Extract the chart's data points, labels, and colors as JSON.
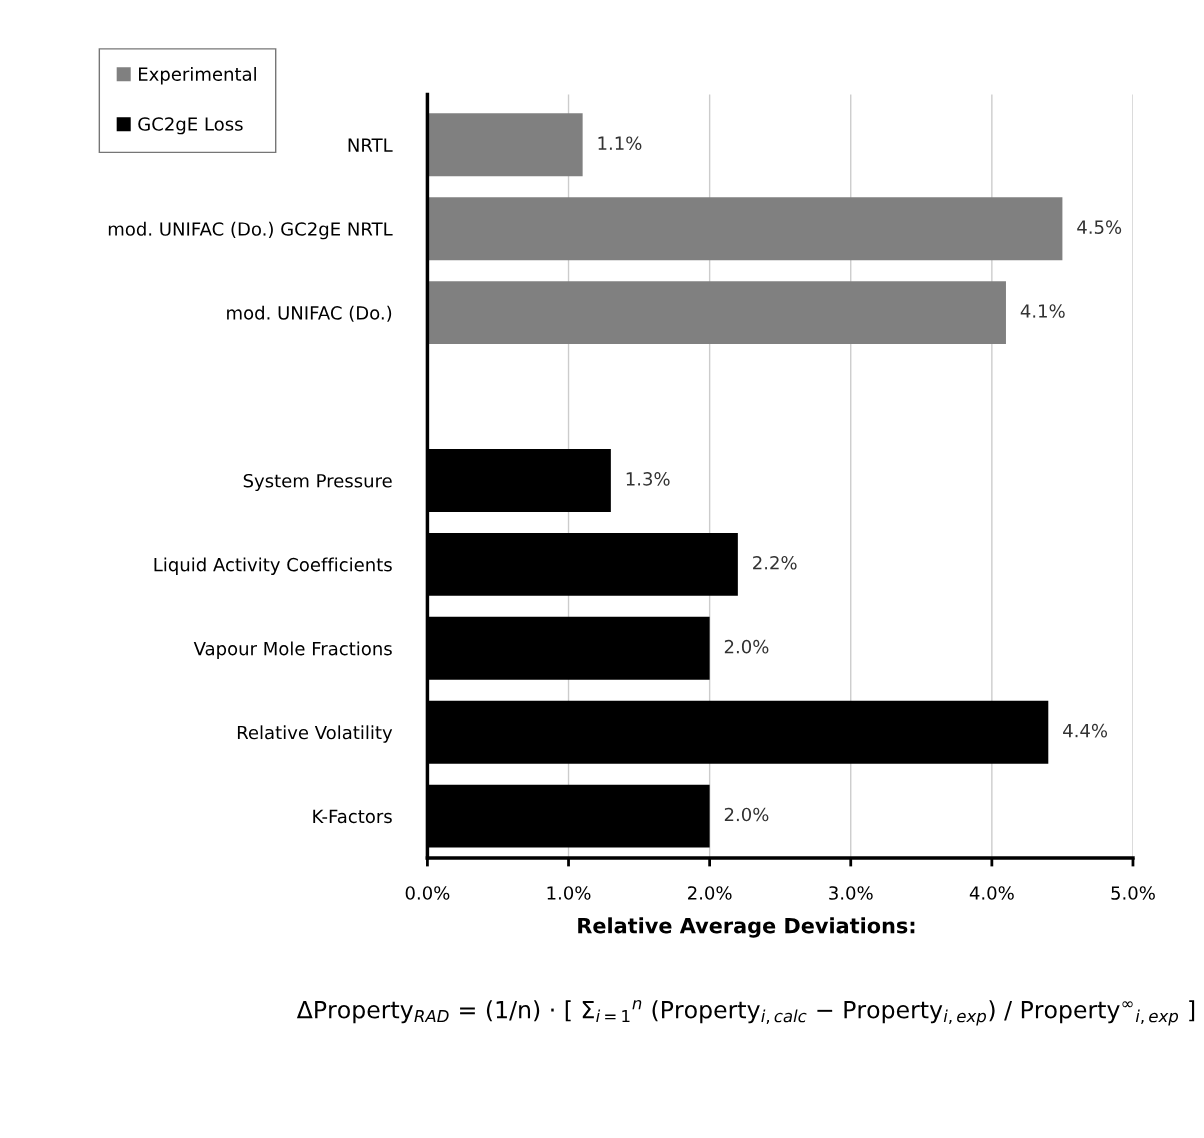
{
  "chart_data": {
    "type": "bar",
    "orientation": "horizontal",
    "categories": [
      "NRTL",
      "mod. UNIFAC (Do.) GC2gE NRTL",
      "mod. UNIFAC (Do.)",
      null,
      "System Pressure",
      "Liquid Activity Coefficients",
      "Vapour Mole Fractions",
      "Relative Volatility",
      "K-Factors"
    ],
    "series": [
      {
        "name": "Experimental",
        "color": "#808080",
        "values": [
          1.1,
          4.5,
          4.1,
          null,
          null,
          null,
          null,
          null,
          null
        ],
        "value_labels": [
          "1.1%",
          "4.5%",
          "4.1%",
          null,
          null,
          null,
          null,
          null,
          null
        ]
      },
      {
        "name": "GC2gE Loss",
        "color": "#000000",
        "values": [
          null,
          null,
          null,
          null,
          1.3,
          2.2,
          2.0,
          4.4,
          2.0
        ],
        "value_labels": [
          null,
          null,
          null,
          null,
          "1.3%",
          "2.2%",
          "2.0%",
          "4.4%",
          "2.0%"
        ]
      }
    ],
    "xlim": [
      0,
      5
    ],
    "xticks": [
      {
        "value": 0,
        "label": "0.0%"
      },
      {
        "value": 1,
        "label": "1.0%"
      },
      {
        "value": 2,
        "label": "2.0%"
      },
      {
        "value": 3,
        "label": "3.0%"
      },
      {
        "value": 4,
        "label": "4.0%"
      },
      {
        "value": 5,
        "label": "5.0%"
      }
    ],
    "grid": "x",
    "legend": "top left",
    "annotations": [
      "Relative Average Deviations:",
      "ΔProperty$_{RAD}$ = (1/n) · [ Σ$_{i=1}$$^{n}$ (Property$_{i,calc}$ − Property$_{i,exp}$) / Property$^{∞}$$_{i,exp}$ ]"
    ]
  }
}
